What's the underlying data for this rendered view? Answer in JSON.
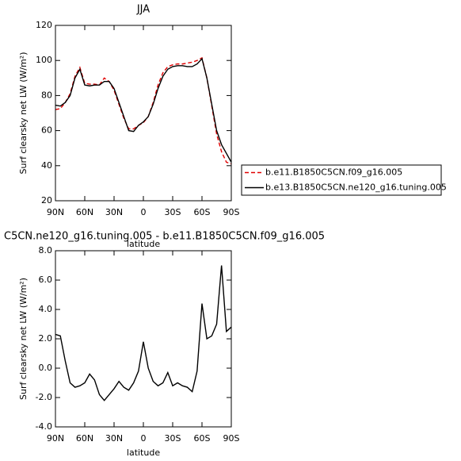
{
  "chart_data": [
    {
      "type": "line",
      "title": "JJA",
      "y_label": "Surf clearsky net LW (W/m²)",
      "x_label": "latitude",
      "x": [
        90,
        85,
        80,
        75,
        70,
        65,
        60,
        55,
        50,
        45,
        40,
        35,
        30,
        25,
        20,
        15,
        10,
        5,
        0,
        -5,
        -10,
        -15,
        -20,
        -25,
        -30,
        -35,
        -40,
        -45,
        -50,
        -55,
        -60,
        -65,
        -70,
        -75,
        -80,
        -85,
        -90
      ],
      "series": [
        {
          "name": "b.e11.B1850C5CN.f09_g16.005",
          "color": "#e00000",
          "dashed": true,
          "values": [
            72,
            72.5,
            76,
            81,
            91,
            96,
            87,
            86.5,
            86.5,
            86,
            90,
            88,
            83,
            75,
            67,
            61,
            61,
            63,
            64.5,
            68,
            76,
            86,
            93,
            96.5,
            97.5,
            98,
            98,
            98.5,
            99,
            100,
            101.5,
            90,
            74,
            58,
            48,
            42,
            41
          ]
        },
        {
          "name": "b.e13.B1850C5CN.ne120_g16.tuning.005",
          "color": "#000000",
          "dashed": false,
          "values": [
            74.5,
            74,
            76,
            80,
            90,
            95,
            86,
            85.5,
            86,
            86,
            88,
            88,
            84,
            76,
            68,
            60,
            59.5,
            63,
            65,
            68,
            75,
            84,
            91,
            95,
            96.5,
            97,
            97,
            96.5,
            96.5,
            98,
            101,
            90,
            75,
            60,
            52,
            47,
            42
          ]
        }
      ],
      "xlim": [
        90,
        -90
      ],
      "xticks": [
        {
          "value": 90,
          "label": "90N"
        },
        {
          "value": 60,
          "label": "60N"
        },
        {
          "value": 30,
          "label": "30N"
        },
        0,
        {
          "value": -30,
          "label": "30S"
        },
        {
          "value": -60,
          "label": "60S"
        },
        {
          "value": -90,
          "label": "90S"
        }
      ],
      "ylim": [
        20,
        120
      ],
      "yticks": [
        20,
        40,
        60,
        80,
        100,
        120
      ],
      "grid": false,
      "legend_position": "outside right"
    },
    {
      "type": "line",
      "title": "C5CN.ne120_g16.tuning.005 - b.e11.B1850C5CN.f09_g16.005",
      "y_label": "Surf clearsky net LW (W/m²)",
      "x_label": "latitude",
      "x": [
        90,
        85,
        80,
        75,
        70,
        65,
        60,
        55,
        50,
        45,
        40,
        35,
        30,
        25,
        20,
        15,
        10,
        5,
        0,
        -5,
        -10,
        -15,
        -20,
        -25,
        -30,
        -35,
        -40,
        -45,
        -50,
        -55,
        -60,
        -65,
        -70,
        -75,
        -80,
        -85,
        -90
      ],
      "color": "#000000",
      "values": [
        2.3,
        2.2,
        0.5,
        -1.0,
        -1.3,
        -1.2,
        -1.0,
        -0.4,
        -0.8,
        -1.8,
        -2.2,
        -1.8,
        -1.4,
        -0.9,
        -1.3,
        -1.5,
        -1.0,
        -0.2,
        1.8,
        0.0,
        -0.9,
        -1.2,
        -1.0,
        -0.3,
        -1.2,
        -1.0,
        -1.2,
        -1.3,
        -1.6,
        -0.2,
        4.4,
        2.0,
        2.2,
        3.0,
        7.0,
        2.5,
        2.8
      ],
      "xlim": [
        90,
        -90
      ],
      "xticks": [
        {
          "value": 90,
          "label": "90N"
        },
        {
          "value": 60,
          "label": "60N"
        },
        {
          "value": 30,
          "label": "30N"
        },
        0,
        {
          "value": -30,
          "label": "30S"
        },
        {
          "value": -60,
          "label": "60S"
        },
        {
          "value": -90,
          "label": "90S"
        }
      ],
      "ylim": [
        -4,
        8
      ],
      "yticks": [
        {
          "value": -4,
          "label": "-4.0"
        },
        {
          "value": -2,
          "label": "-2.0"
        },
        {
          "value": 0,
          "label": "0.0"
        },
        {
          "value": 2,
          "label": "2.0"
        },
        {
          "value": 4,
          "label": "4.0"
        },
        {
          "value": 6,
          "label": "6.0"
        },
        {
          "value": 8,
          "label": "8.0"
        }
      ],
      "grid": false
    }
  ]
}
